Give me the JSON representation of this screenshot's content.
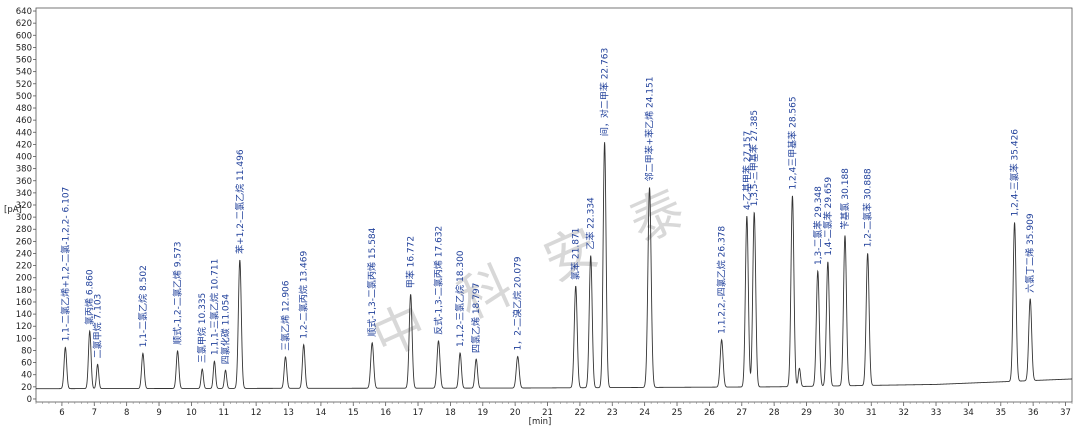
{
  "chart_data": {
    "type": "line",
    "xlabel": "[min]",
    "ylabel": "[pA]",
    "xlim": [
      5.2,
      37.2
    ],
    "ylim": [
      -5,
      645
    ],
    "x_ticks": [
      6,
      7,
      8,
      9,
      10,
      11,
      12,
      13,
      14,
      15,
      16,
      17,
      18,
      19,
      20,
      21,
      22,
      23,
      24,
      25,
      26,
      27,
      28,
      29,
      30,
      31,
      32,
      33,
      34,
      35,
      36,
      37
    ],
    "y_ticks": [
      0,
      20,
      40,
      60,
      80,
      100,
      120,
      140,
      160,
      180,
      200,
      220,
      240,
      260,
      280,
      300,
      320,
      340,
      360,
      380,
      400,
      420,
      440,
      460,
      480,
      500,
      520,
      540,
      560,
      580,
      600,
      620,
      640
    ],
    "line_color": "#333333",
    "label_color": "#1f3f9a",
    "watermark": "中科安泰",
    "baseline": [
      [
        5.2,
        17
      ],
      [
        20,
        18
      ],
      [
        28,
        20
      ],
      [
        33,
        24
      ],
      [
        37.2,
        33
      ]
    ],
    "peaks": [
      {
        "t": 6.107,
        "h": 68,
        "w": 0.04,
        "label": "1,1-二氯乙烯+1,2-二氯-1,2,2- 6.107"
      },
      {
        "t": 6.86,
        "h": 95,
        "w": 0.04,
        "label": "氯丙烯 6.860"
      },
      {
        "t": 7.103,
        "h": 40,
        "w": 0.035,
        "label": "二氯甲烷 7.103"
      },
      {
        "t": 8.502,
        "h": 58,
        "w": 0.04,
        "label": "1,1-二氯乙烷 8.502"
      },
      {
        "t": 9.573,
        "h": 62,
        "w": 0.04,
        "label": "顺式-1,2-二氯乙烯 9.573"
      },
      {
        "t": 10.335,
        "h": 32,
        "w": 0.035,
        "label": "三氯甲烷 10.335"
      },
      {
        "t": 10.711,
        "h": 45,
        "w": 0.035,
        "label": "1,1,1-三氯乙烷 10.711"
      },
      {
        "t": 11.054,
        "h": 30,
        "w": 0.035,
        "label": "四氯化碳 11.054"
      },
      {
        "t": 11.496,
        "h": 212,
        "w": 0.045,
        "label": "苯+1,2-二氯乙烷 11.496"
      },
      {
        "t": 12.906,
        "h": 52,
        "w": 0.04,
        "label": "三氯乙烯 12.906"
      },
      {
        "t": 13.469,
        "h": 72,
        "w": 0.04,
        "label": "1,2-二氯丙烷 13.469"
      },
      {
        "t": 15.584,
        "h": 75,
        "w": 0.045,
        "label": "顺式-1,3-二氯丙烯 15.584"
      },
      {
        "t": 16.772,
        "h": 155,
        "w": 0.045,
        "label": "甲苯 16.772"
      },
      {
        "t": 17.632,
        "h": 78,
        "w": 0.045,
        "label": "反式-1,3-二氯丙烯 17.632"
      },
      {
        "t": 18.3,
        "h": 58,
        "w": 0.04,
        "label": "1,1,2-三氯乙烷 18.300"
      },
      {
        "t": 18.797,
        "h": 48,
        "w": 0.04,
        "label": "四氯乙烯 18.797"
      },
      {
        "t": 20.079,
        "h": 52,
        "w": 0.045,
        "label": "1，2-二溴乙烷 20.079"
      },
      {
        "t": 21.871,
        "h": 168,
        "w": 0.045,
        "label": "氯苯 21.871"
      },
      {
        "t": 22.334,
        "h": 218,
        "w": 0.045,
        "label": "乙苯 22.334"
      },
      {
        "t": 22.763,
        "h": 405,
        "w": 0.045,
        "label": "间，对二甲苯 22.763"
      },
      {
        "t": 24.151,
        "h": 330,
        "w": 0.05,
        "label": "邻二甲苯+苯乙烯 24.151"
      },
      {
        "t": 26.378,
        "h": 78,
        "w": 0.045,
        "label": "1,1,2,2,-四氯乙烷 26.378"
      },
      {
        "t": 27.157,
        "h": 282,
        "w": 0.045,
        "label": "4-乙基甲苯 27.157"
      },
      {
        "t": 27.385,
        "h": 288,
        "w": 0.045,
        "label": "1,3,5-三甲基苯 27.385"
      },
      {
        "t": 28.565,
        "h": 315,
        "w": 0.045,
        "label": "1,2,4三甲基苯 28.565"
      },
      {
        "t": 28.78,
        "h": 30,
        "w": 0.035,
        "label": ""
      },
      {
        "t": 29.348,
        "h": 190,
        "w": 0.045,
        "label": "1,3-二氯苯 29.348"
      },
      {
        "t": 29.659,
        "h": 205,
        "w": 0.045,
        "label": "1,4-二氯苯 29.659"
      },
      {
        "t": 30.188,
        "h": 248,
        "w": 0.045,
        "label": "苄基氯 30.188"
      },
      {
        "t": 30.888,
        "h": 218,
        "w": 0.045,
        "label": "1,2-二氯苯 30.888"
      },
      {
        "t": 35.426,
        "h": 262,
        "w": 0.045,
        "label": "1,2,4-三氯苯 35.426"
      },
      {
        "t": 35.909,
        "h": 135,
        "w": 0.045,
        "label": "六氯丁二烯 35.909"
      }
    ]
  }
}
